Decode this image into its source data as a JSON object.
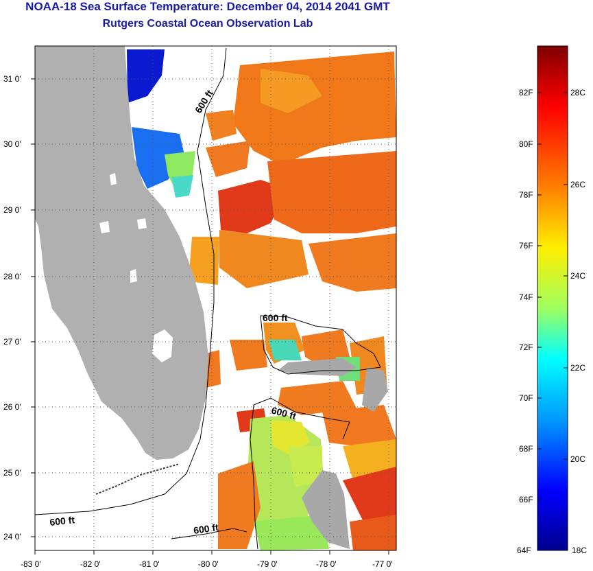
{
  "header": {
    "title": "NOAA-18 Sea Surface Temperature:  December 04, 2014 2041 GMT",
    "subtitle": "Rutgers Coastal Ocean Observation Lab"
  },
  "map": {
    "lat_labels": [
      "31 0'",
      "30 0'",
      "29 0'",
      "28 0'",
      "27 0'",
      "26 0'",
      "25 0'",
      "24 0'"
    ],
    "lon_labels": [
      "-83 0'",
      "-82 0'",
      "-81 0'",
      "-80 0'",
      "-79 0'",
      "-78 0'",
      "-77 0'"
    ],
    "isobath_label": "600 ft",
    "colors": {
      "land": "#b0b0b0",
      "no_data": "#ffffff"
    }
  },
  "colorbar": {
    "f_labels": [
      "82F",
      "80F",
      "78F",
      "76F",
      "74F",
      "72F",
      "70F",
      "68F",
      "66F",
      "64F"
    ],
    "c_labels": [
      "28C",
      "26C",
      "24C",
      "22C",
      "20C",
      "18C"
    ],
    "stops": [
      "#7f0000",
      "#ff0000",
      "#ff7f00",
      "#ffff00",
      "#7fff7f",
      "#00ffff",
      "#007fff",
      "#0000ff",
      "#00008f"
    ]
  }
}
